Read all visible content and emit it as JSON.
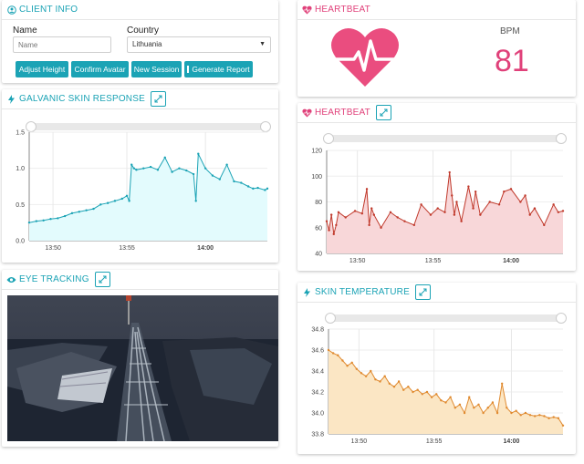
{
  "client_info": {
    "title": "CLIENT INFO",
    "name_label": "Name",
    "name_placeholder": "Name",
    "country_label": "Country",
    "country_value": "Lithuania",
    "buttons": [
      "Adjust Height",
      "Confirm Avatar",
      "New Session",
      "Generate Report"
    ]
  },
  "heartbeat_display": {
    "title": "HEARTBEAT",
    "unit": "BPM",
    "value": "81"
  },
  "gsr": {
    "title": "GALVANIC SKIN RESPONSE"
  },
  "heartbeat_chart": {
    "title": "HEARTBEAT"
  },
  "eye_tracking": {
    "title": "EYE TRACKING"
  },
  "skin_temp": {
    "title": "SKIN TEMPERATURE"
  },
  "colors": {
    "accent": "#1ba3b5",
    "heart": "#e0417a"
  },
  "chart_data": [
    {
      "id": "gsr",
      "type": "area",
      "color": "#1ba3b5",
      "fill": "#e3fbfd",
      "ylim": [
        0,
        1.5
      ],
      "yticks": [
        "0.0",
        "0.5",
        "1.0",
        "1.5"
      ],
      "xticks": [
        "13:50",
        "13:55",
        "14:00"
      ],
      "xlim": [
        0,
        100
      ],
      "x": [
        0,
        3,
        6,
        9,
        12,
        15,
        18,
        21,
        24,
        27,
        30,
        33,
        36,
        39,
        41,
        42,
        43,
        44,
        45,
        48,
        51,
        54,
        57,
        60,
        63,
        66,
        69,
        70,
        71,
        74,
        77,
        80,
        83,
        86,
        89,
        92,
        94,
        96,
        99,
        100
      ],
      "y": [
        0.25,
        0.27,
        0.28,
        0.3,
        0.31,
        0.34,
        0.38,
        0.4,
        0.42,
        0.44,
        0.5,
        0.52,
        0.55,
        0.58,
        0.62,
        0.55,
        1.05,
        1.0,
        0.98,
        1.0,
        1.02,
        0.98,
        1.15,
        0.95,
        1.0,
        0.97,
        0.92,
        0.55,
        1.2,
        1.0,
        0.9,
        0.85,
        1.05,
        0.82,
        0.8,
        0.75,
        0.72,
        0.73,
        0.7,
        0.72
      ]
    },
    {
      "id": "heartbeat",
      "type": "area",
      "color": "#c0392b",
      "fill": "#f8d7d9",
      "ylim": [
        40,
        120
      ],
      "yticks": [
        "40",
        "60",
        "80",
        "100",
        "120"
      ],
      "xticks": [
        "13:50",
        "13:55",
        "14:00"
      ],
      "xlim": [
        0,
        100
      ],
      "x": [
        0,
        1,
        2,
        3,
        4,
        5,
        8,
        12,
        15,
        17,
        18,
        19,
        20,
        23,
        27,
        30,
        33,
        37,
        40,
        44,
        47,
        50,
        52,
        53,
        54,
        55,
        57,
        60,
        62,
        63,
        65,
        69,
        73,
        75,
        78,
        82,
        84,
        86,
        88,
        92,
        96,
        98,
        100
      ],
      "y": [
        65,
        58,
        70,
        55,
        62,
        72,
        68,
        73,
        71,
        90,
        62,
        75,
        70,
        60,
        72,
        68,
        65,
        62,
        78,
        70,
        75,
        72,
        103,
        85,
        70,
        80,
        65,
        92,
        75,
        88,
        70,
        80,
        78,
        88,
        90,
        80,
        85,
        70,
        75,
        62,
        78,
        72,
        73
      ]
    },
    {
      "id": "skin_temperature",
      "type": "area",
      "color": "#e08a2f",
      "fill": "#fbe6c4",
      "ylim": [
        33.8,
        34.8
      ],
      "yticks": [
        "33.8",
        "34.0",
        "34.2",
        "34.4",
        "34.6",
        "34.8"
      ],
      "xticks": [
        "13:50",
        "13:55",
        "14:00"
      ],
      "xlim": [
        0,
        100
      ],
      "x": [
        0,
        2,
        4,
        6,
        8,
        10,
        12,
        14,
        16,
        18,
        20,
        22,
        24,
        26,
        28,
        30,
        32,
        34,
        36,
        38,
        40,
        42,
        44,
        46,
        48,
        50,
        52,
        54,
        56,
        58,
        60,
        62,
        64,
        66,
        68,
        70,
        72,
        74,
        76,
        78,
        80,
        82,
        84,
        86,
        88,
        90,
        92,
        94,
        96,
        98,
        100
      ],
      "y": [
        34.6,
        34.57,
        34.55,
        34.5,
        34.45,
        34.48,
        34.42,
        34.38,
        34.35,
        34.4,
        34.32,
        34.3,
        34.35,
        34.28,
        34.25,
        34.3,
        34.22,
        34.25,
        34.2,
        34.22,
        34.18,
        34.2,
        34.15,
        34.18,
        34.12,
        34.1,
        34.15,
        34.05,
        34.08,
        34.0,
        34.15,
        34.05,
        34.08,
        34.0,
        34.05,
        34.1,
        34.0,
        34.28,
        34.05,
        34.0,
        34.02,
        33.98,
        34.0,
        33.98,
        33.97,
        33.98,
        33.97,
        33.95,
        33.96,
        33.95,
        33.88
      ]
    }
  ]
}
